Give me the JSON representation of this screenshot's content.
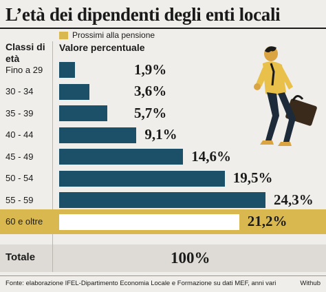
{
  "title": "L’età dei dipendenti degli enti locali",
  "legend": {
    "label": "Prossimi alla pensione",
    "color": "#d9b94f"
  },
  "col_head_classes": "Classi di età",
  "col_head_value": "Valore percentuale",
  "total": {
    "label": "Totale",
    "value": "100%"
  },
  "source": "Fonte: elaborazione IFEL-Dipartimento Economia Locale e Formazione su dati MEF, anni vari",
  "credit": "Withub",
  "colors": {
    "bar": "#1c4f68",
    "highlight_bar": "#ffffff",
    "highlight_band": "#d9b94f",
    "background": "#f0eeea"
  },
  "illustration": {
    "icon": "businessman-with-briefcase-icon"
  },
  "chart_data": {
    "type": "bar",
    "orientation": "horizontal",
    "categories": [
      "Fino a 29",
      "30 - 34",
      "35 - 39",
      "40 - 44",
      "45 - 49",
      "50 - 54",
      "55 - 59",
      "60 e oltre"
    ],
    "values": [
      1.9,
      3.6,
      5.7,
      9.1,
      14.6,
      19.5,
      24.3,
      21.2
    ],
    "value_labels": [
      "1,9%",
      "3,6%",
      "5,7%",
      "9,1%",
      "14,6%",
      "19,5%",
      "24,3%",
      "21,2%"
    ],
    "highlighted": [
      "60 e oltre"
    ],
    "xlim": [
      0,
      24.3
    ]
  }
}
